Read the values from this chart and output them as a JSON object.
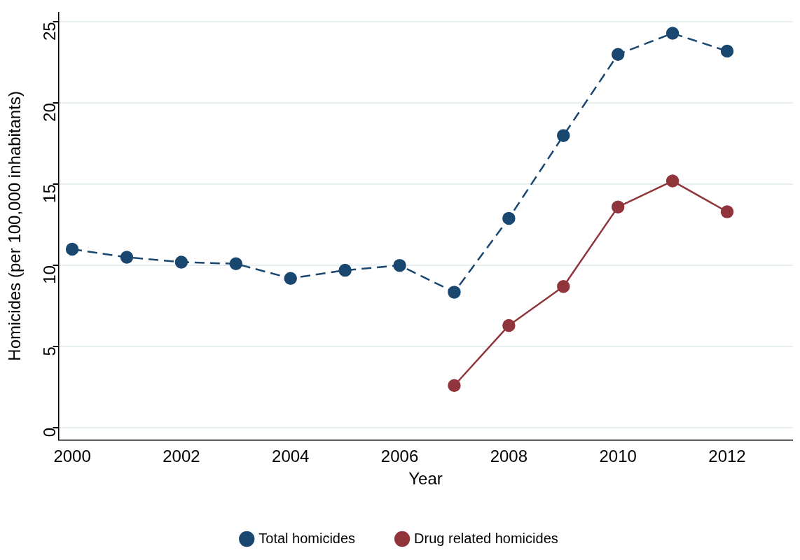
{
  "chart_data": {
    "type": "line",
    "xlabel": "Year",
    "ylabel": "Homicides (per 100,000 inhabitants)",
    "xlim": [
      1999.75,
      2013.2
    ],
    "xticks": [
      2000,
      2002,
      2004,
      2006,
      2008,
      2010,
      2012
    ],
    "ylim": [
      -0.75,
      25.6
    ],
    "yticks": [
      0,
      5,
      10,
      15,
      20,
      25
    ],
    "grid": "y",
    "legend": "bottom",
    "marker": "circle",
    "series": [
      {
        "name": "Total homicides",
        "color": "#1a476f",
        "line_style": "dashed",
        "x": [
          2000,
          2001,
          2002,
          2003,
          2004,
          2005,
          2006,
          2007,
          2008,
          2009,
          2010,
          2011,
          2012
        ],
        "values": [
          11.0,
          10.5,
          10.2,
          10.1,
          9.2,
          9.7,
          10.0,
          8.35,
          12.9,
          18.0,
          23.0,
          24.3,
          23.2
        ]
      },
      {
        "name": "Drug related homicides",
        "color": "#90353b",
        "line_style": "solid",
        "x": [
          2007,
          2008,
          2009,
          2010,
          2011,
          2012
        ],
        "values": [
          2.6,
          6.3,
          8.7,
          13.6,
          15.2,
          13.3
        ]
      }
    ]
  }
}
